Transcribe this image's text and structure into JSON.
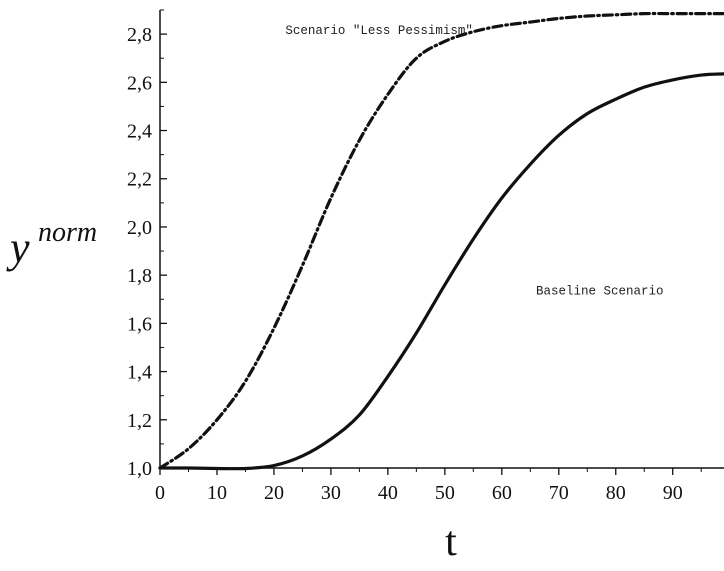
{
  "chart_data": {
    "type": "line",
    "title": "",
    "xlabel": "t",
    "ylabel": "y",
    "ylabel_superscript": "norm",
    "xlim": [
      0,
      99
    ],
    "ylim": [
      1.0,
      2.9
    ],
    "x_ticks": [
      0,
      10,
      20,
      30,
      40,
      50,
      60,
      70,
      80,
      90
    ],
    "x_tick_labels": [
      "0",
      "10",
      "20",
      "30",
      "40",
      "50",
      "60",
      "70",
      "80",
      "90"
    ],
    "y_ticks": [
      1.0,
      1.2,
      1.4,
      1.6,
      1.8,
      2.0,
      2.2,
      2.4,
      2.6,
      2.8
    ],
    "y_tick_labels": [
      "1,0",
      "1,2",
      "1,4",
      "1,6",
      "1,8",
      "2,0",
      "2,2",
      "2,4",
      "2,6",
      "2,8"
    ],
    "grid": false,
    "legend": "none",
    "series": [
      {
        "name": "Scenario \"Less Pessimism\"",
        "style": "dash-dot",
        "color": "#111111",
        "x": [
          0,
          5,
          10,
          15,
          20,
          25,
          30,
          35,
          40,
          45,
          50,
          55,
          60,
          65,
          70,
          75,
          80,
          85,
          90,
          95,
          99
        ],
        "y": [
          1.0,
          1.08,
          1.2,
          1.36,
          1.58,
          1.84,
          2.12,
          2.36,
          2.55,
          2.7,
          2.77,
          2.81,
          2.835,
          2.85,
          2.865,
          2.875,
          2.88,
          2.885,
          2.885,
          2.885,
          2.885
        ]
      },
      {
        "name": "Baseline Scenario",
        "style": "solid",
        "color": "#111111",
        "x": [
          0,
          5,
          10,
          15,
          20,
          25,
          30,
          35,
          40,
          45,
          50,
          55,
          60,
          65,
          70,
          75,
          80,
          85,
          90,
          95,
          99
        ],
        "y": [
          1.0,
          1.0,
          0.998,
          0.998,
          1.01,
          1.05,
          1.12,
          1.22,
          1.38,
          1.56,
          1.76,
          1.95,
          2.12,
          2.26,
          2.38,
          2.47,
          2.53,
          2.58,
          2.61,
          2.63,
          2.635
        ]
      }
    ],
    "annotations": [
      {
        "text": "Scenario \"Less Pessimism\"",
        "x": 22,
        "y": 2.8
      },
      {
        "text": "Baseline Scenario",
        "x": 66,
        "y": 1.72
      }
    ]
  }
}
